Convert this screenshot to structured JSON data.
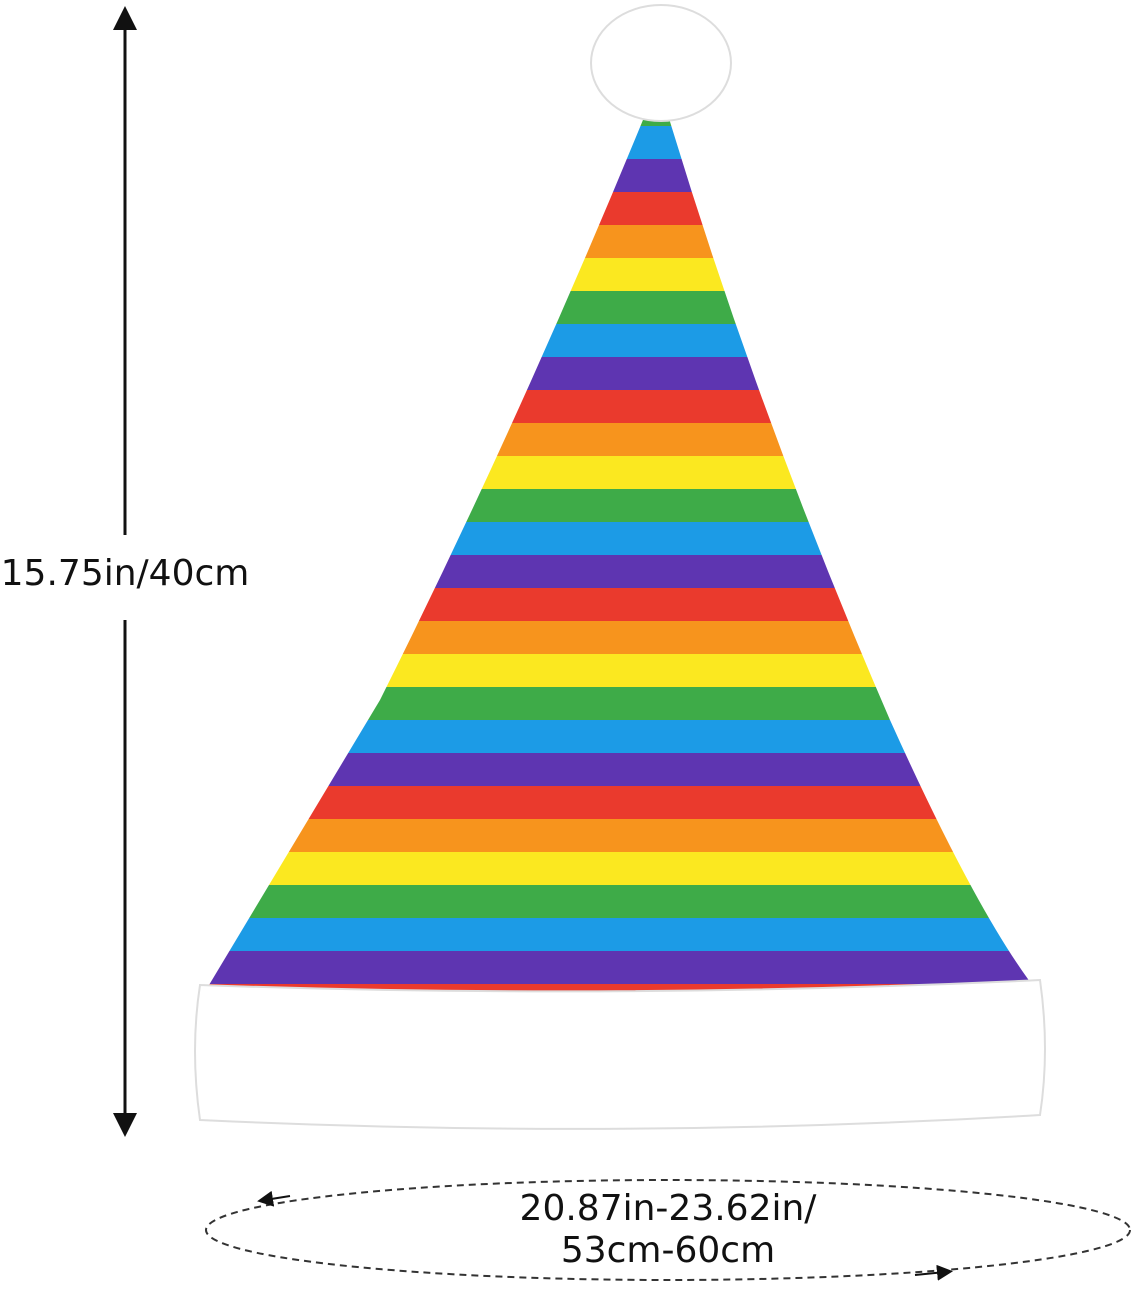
{
  "dimensions": {
    "height": {
      "label": "15.75in/40cm"
    },
    "circumference": {
      "lines": [
        "20.87in-23.62in/",
        "53cm-60cm"
      ]
    }
  }
}
